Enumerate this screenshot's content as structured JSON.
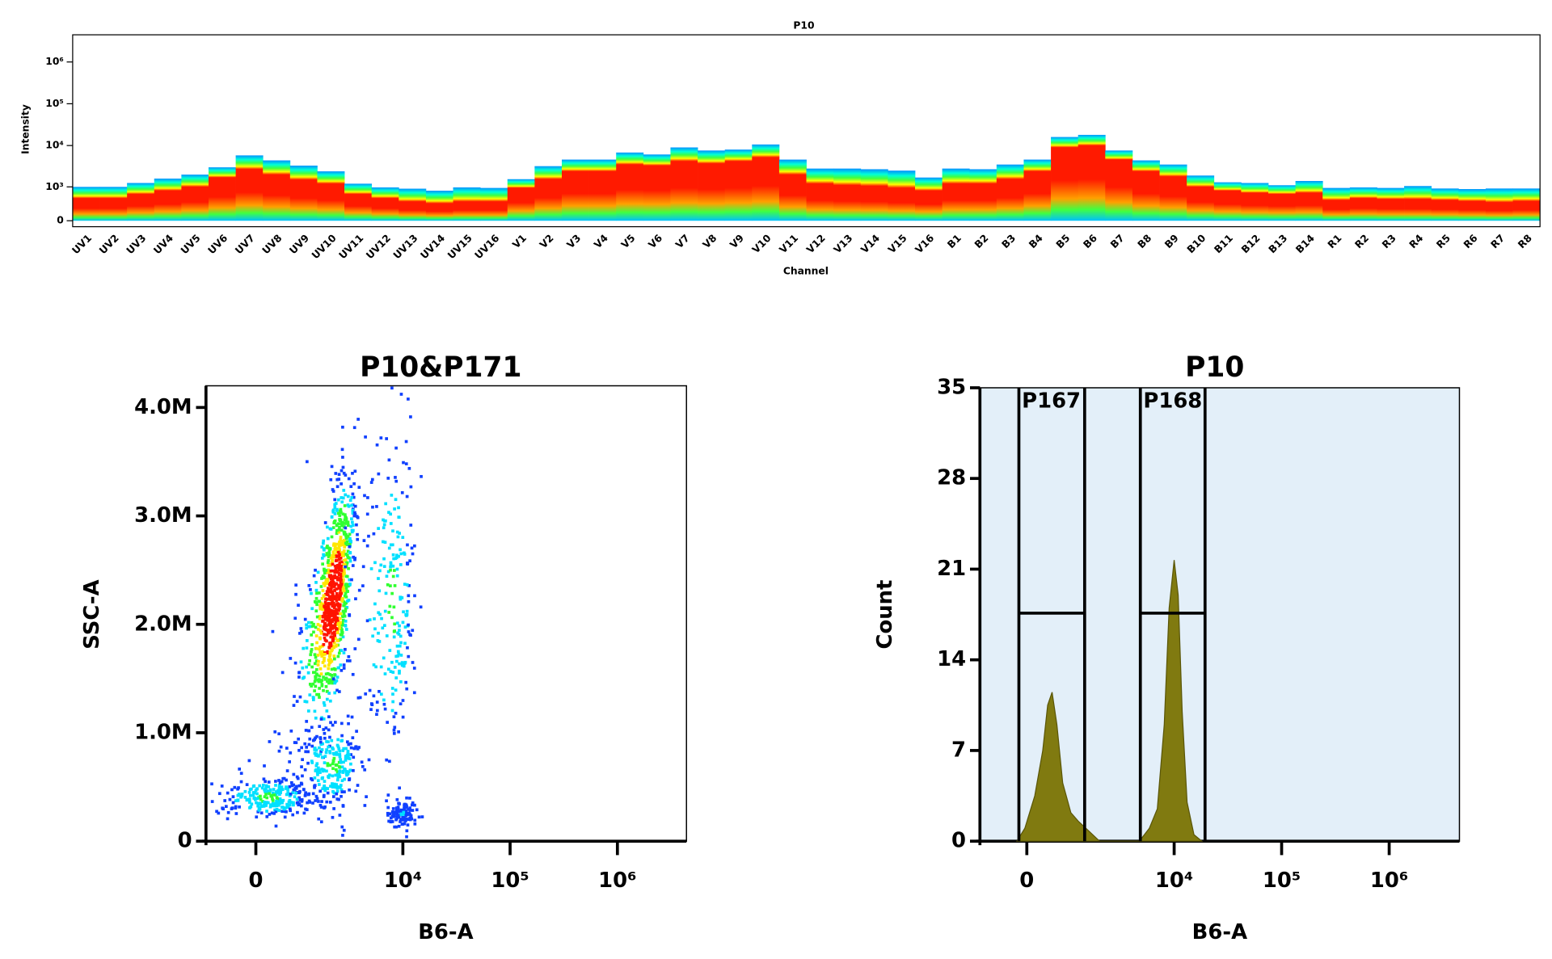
{
  "chart_data": [
    {
      "type": "spectrum",
      "title": "P10",
      "y_label": "Intensity",
      "x_label": "Channel",
      "y_scale": "biex",
      "categories": [
        "UV1",
        "UV2",
        "UV3",
        "UV4",
        "UV5",
        "UV6",
        "UV7",
        "UV8",
        "UV9",
        "UV10",
        "UV11",
        "UV12",
        "UV13",
        "UV14",
        "UV15",
        "UV16",
        "V1",
        "V2",
        "V3",
        "V4",
        "V5",
        "V6",
        "V7",
        "V8",
        "V9",
        "V10",
        "V11",
        "V12",
        "V13",
        "V14",
        "V15",
        "V16",
        "B1",
        "B2",
        "B3",
        "B4",
        "B5",
        "B6",
        "B7",
        "B8",
        "B9",
        "B10",
        "B11",
        "B12",
        "B13",
        "B14",
        "R1",
        "R2",
        "R3",
        "R4",
        "R5",
        "R6",
        "R7",
        "R8"
      ],
      "values": [
        500,
        500,
        650,
        800,
        1000,
        1700,
        2700,
        2000,
        1500,
        1200,
        650,
        500,
        400,
        350,
        400,
        400,
        940,
        1550,
        2400,
        2400,
        3500,
        3300,
        4200,
        3700,
        4200,
        5200,
        2000,
        1200,
        1100,
        1050,
        940,
        800,
        1200,
        1200,
        1550,
        2400,
        9000,
        10000,
        4600,
        2400,
        1800,
        1000,
        800,
        700,
        650,
        700,
        440,
        500,
        470,
        470,
        440,
        410,
        380,
        410
      ],
      "upper": [
        1000,
        1000,
        1250,
        1600,
        2000,
        3000,
        5800,
        4400,
        3300,
        2400,
        1200,
        970,
        900,
        800,
        970,
        940,
        1550,
        3200,
        4600,
        4600,
        6800,
        6100,
        9000,
        7600,
        8000,
        10600,
        4600,
        2800,
        2800,
        2700,
        2500,
        1700,
        2800,
        2700,
        3500,
        4600,
        16000,
        18000,
        7600,
        4400,
        3500,
        1900,
        1300,
        1250,
        1100,
        1400,
        940,
        970,
        940,
        1050,
        910,
        880,
        910,
        910
      ],
      "ylim": [
        -106,
        4470000
      ],
      "yticks": [
        0,
        {
          "value": 1000,
          "label": "10³"
        },
        {
          "value": 10000,
          "label": "10⁴"
        },
        {
          "value": 100000,
          "label": "10⁵"
        },
        {
          "value": 1000000,
          "label": "10⁶"
        }
      ]
    },
    {
      "type": "scatter",
      "title": "P10&P171",
      "x_label": "B6-A",
      "y_label": "SSC-A",
      "x_scale": "biex",
      "xlim": [
        -1100,
        4400000
      ],
      "xticks": [
        0,
        {
          "value": 10000,
          "label": "10⁴"
        },
        {
          "value": 100000,
          "label": "10⁵"
        },
        {
          "value": 1000000,
          "label": "10⁶"
        }
      ],
      "ylim": [
        0,
        4200000
      ],
      "yticks": [
        0,
        {
          "value": 1000000,
          "label": "1.0M"
        },
        {
          "value": 2000000,
          "label": "2.0M"
        },
        {
          "value": 3000000,
          "label": "3.0M"
        },
        {
          "value": 4000000,
          "label": "4.0M"
        }
      ],
      "populations": [
        {
          "x": 2170,
          "y": 2200000,
          "x_sd": 600,
          "y_sd": 550000,
          "rho": 0.6,
          "n": 900
        },
        {
          "x": 240,
          "y": 400000,
          "x_sd": 500,
          "y_sd": 100000,
          "rho": 0,
          "n": 250
        },
        {
          "x": 2200,
          "y": 700000,
          "x_sd": 800,
          "y_sd": 200000,
          "rho": 0,
          "n": 250
        },
        {
          "x": 10000,
          "y": 250000,
          "x_sd": 1500,
          "y_sd": 60000,
          "rho": 0,
          "n": 120
        },
        {
          "x": 8000,
          "y": 2200000,
          "x_sd": 2500,
          "y_sd": 800000,
          "rho": 0,
          "n": 250
        }
      ]
    },
    {
      "type": "histogram",
      "title": "P10",
      "x_label": "B6-A",
      "y_label": "Count",
      "x_scale": "biex",
      "xlim": [
        -1010,
        4500000
      ],
      "xticks": [
        0,
        {
          "value": 10000,
          "label": "10⁴"
        },
        {
          "value": 100000,
          "label": "10⁵"
        },
        {
          "value": 1000000,
          "label": "10⁶"
        }
      ],
      "ylim": [
        0,
        35
      ],
      "yticks": [
        0,
        7,
        14,
        21,
        28,
        35
      ],
      "x": [
        -183,
        -36,
        146,
        297,
        394,
        485,
        589,
        723,
        931,
        1160,
        1490,
        1940,
        4720,
        5860,
        6960,
        8080,
        8980,
        10000,
        10900,
        11880,
        13200,
        15300,
        18100
      ],
      "values": [
        0,
        1,
        3.5,
        7,
        10.5,
        11.5,
        9,
        4.5,
        2.2,
        1.5,
        0.8,
        0,
        0,
        1,
        2.5,
        9,
        18,
        21.7,
        19,
        10,
        3,
        0.5,
        0
      ],
      "color": "#807a10",
      "background": "#e3eff9",
      "gates": [
        {
          "label": "P167",
          "range": [
            -146,
            1350
          ],
          "level": 17.6
        },
        {
          "label": "P168",
          "range": [
            4820,
            19400
          ],
          "level": 17.6
        }
      ]
    }
  ]
}
